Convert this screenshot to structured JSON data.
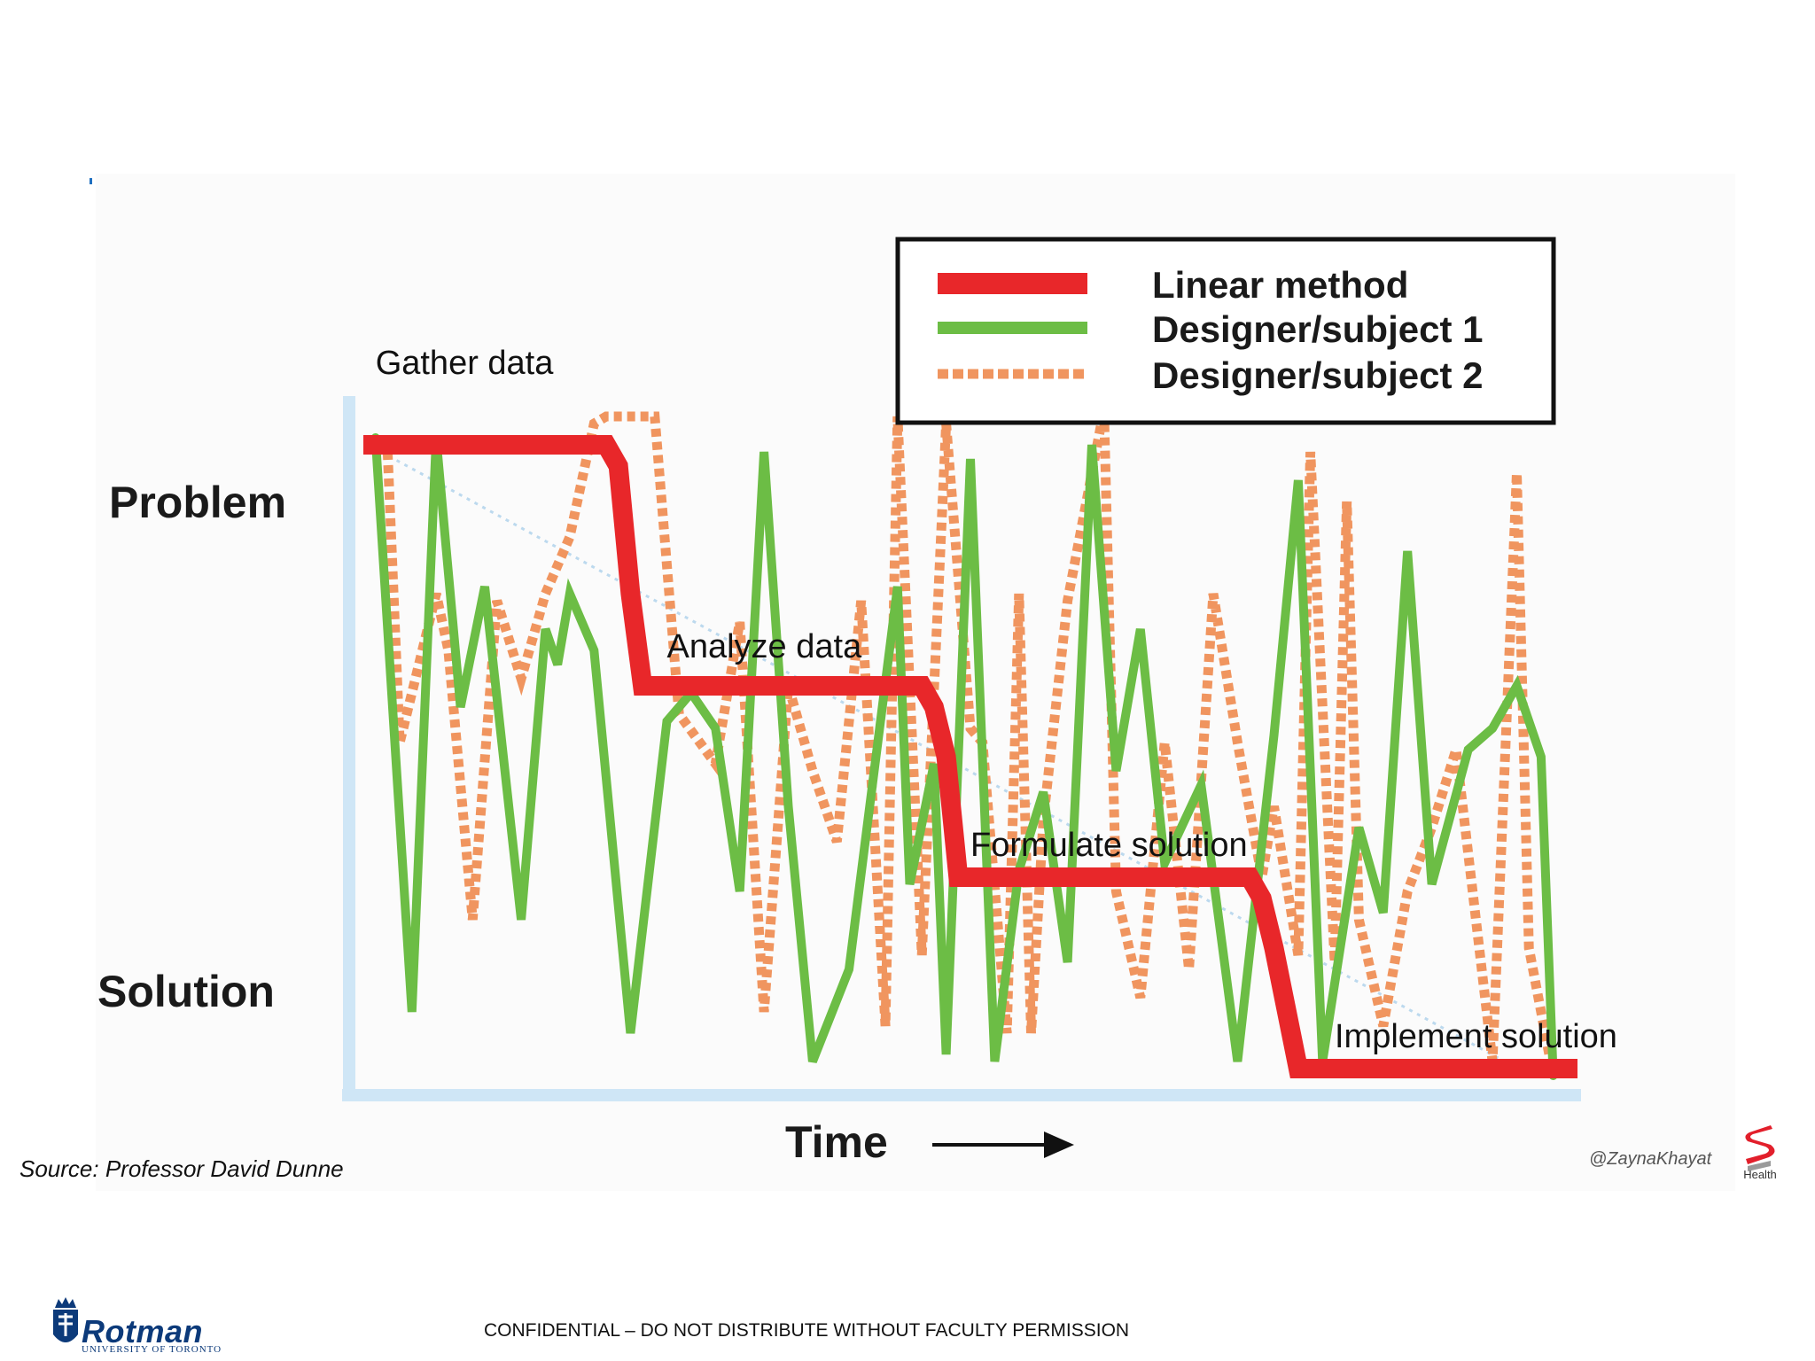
{
  "chart_data": {
    "type": "line",
    "xlabel": "Time",
    "ylabel": "",
    "y_top_label": "Problem",
    "y_bottom_label": "Solution",
    "xlim": [
      0,
      100
    ],
    "ylim": [
      0,
      100
    ],
    "legend_position": "top-right",
    "annotations": [
      {
        "text": "Gather data",
        "x": 1,
        "y": 101
      },
      {
        "text": "Analyze data",
        "x": 25,
        "y": 61
      },
      {
        "text": "Formulate solution",
        "x": 50,
        "y": 33
      },
      {
        "text": "Implement solution",
        "x": 80,
        "y": 6
      }
    ],
    "series": [
      {
        "name": "Linear method",
        "color": "#e8272a",
        "style": "solid-thick",
        "x": [
          0,
          20,
          21,
          22,
          23,
          46,
          47,
          48,
          49,
          73,
          74,
          75,
          77,
          100
        ],
        "y": [
          91,
          91,
          88,
          70,
          57,
          57,
          54,
          47,
          30,
          30,
          27,
          20,
          3,
          3
        ]
      },
      {
        "name": "Designer/subject 1",
        "color": "#6cbd45",
        "style": "solid",
        "x": [
          1,
          4,
          6,
          8,
          10,
          13,
          15,
          16,
          17,
          19,
          22,
          25,
          27,
          29,
          31,
          33,
          35,
          37,
          40,
          44,
          45,
          47,
          48,
          50,
          52,
          54,
          56,
          58,
          60,
          62,
          64,
          66,
          69,
          72,
          75,
          77,
          79,
          82,
          84,
          86,
          88,
          91,
          93,
          95,
          97,
          98
        ],
        "y": [
          92,
          11,
          92,
          54,
          71,
          24,
          65,
          60,
          70,
          62,
          8,
          52,
          56,
          51,
          28,
          90,
          40,
          4,
          17,
          71,
          29,
          46,
          5,
          89,
          4,
          31,
          42,
          18,
          91,
          45,
          65,
          32,
          43,
          4,
          50,
          86,
          4,
          37,
          25,
          76,
          29,
          48,
          51,
          57,
          47,
          2
        ]
      },
      {
        "name": "Designer/subject 2",
        "color": "#f0955f",
        "style": "dotted",
        "x": [
          2,
          3,
          6,
          7,
          9,
          11,
          13,
          15,
          17,
          19,
          20,
          24,
          26,
          29,
          31,
          33,
          35,
          37,
          39,
          41,
          43,
          44,
          46,
          48,
          50,
          51,
          53,
          54,
          55,
          56,
          58,
          61,
          62,
          64,
          66,
          68,
          70,
          72,
          74,
          75,
          77,
          78,
          80,
          81,
          82,
          84,
          86,
          88,
          90,
          93,
          95,
          96,
          98
        ],
        "y": [
          90,
          49,
          70,
          62,
          24,
          69,
          58,
          70,
          78,
          94,
          95,
          95,
          53,
          46,
          66,
          11,
          57,
          45,
          35,
          69,
          9,
          95,
          19,
          94,
          51,
          49,
          8,
          70,
          8,
          38,
          69,
          96,
          28,
          13,
          49,
          17,
          70,
          49,
          30,
          40,
          19,
          90,
          18,
          83,
          24,
          9,
          28,
          37,
          48,
          4,
          87,
          20,
          2
        ]
      }
    ]
  },
  "source": "Source: Professor David Dunne",
  "handle": "@ZaynaKhayat",
  "health_logo_label": "Health",
  "rotman": {
    "name": "Rotman",
    "subtitle": "UNIVERSITY OF TORONTO"
  },
  "footer": "CONFIDENTIAL – DO NOT DISTRIBUTE WITHOUT FACULTY PERMISSION"
}
